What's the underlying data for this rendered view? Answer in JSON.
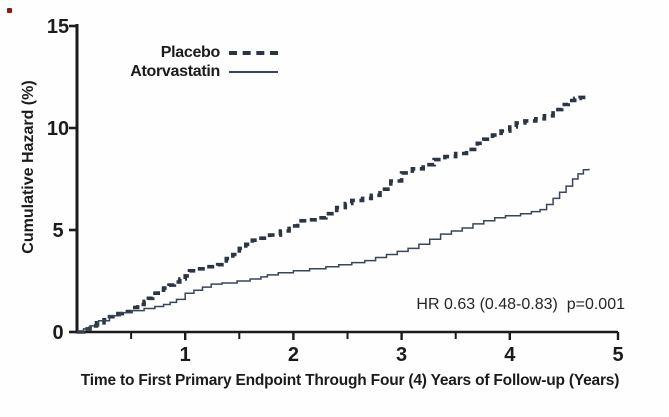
{
  "chart_data": {
    "type": "line",
    "subtype": "step-cumulative-hazard",
    "title": "",
    "xlabel": "Time to First Primary Endpoint Through Four (4) Years of Follow-up (Years)",
    "ylabel": "Cumulative Hazard (%)",
    "annotation": "HR 0.63 (0.48-0.83)  p=0.001",
    "xlim": [
      0,
      5
    ],
    "ylim": [
      0,
      15
    ],
    "x_major_ticks": [
      1,
      2,
      3,
      4,
      5
    ],
    "x_minor_ticks": [
      0.5,
      1.5,
      2.5,
      3.5
    ],
    "y_ticks": [
      0,
      5,
      10,
      15
    ],
    "grid": false,
    "legend_position": "top-center-inside",
    "series": [
      {
        "name": "Placebo",
        "style": "dashed",
        "color": "#2c3544",
        "line_width": 3.6,
        "points": [
          [
            0,
            0
          ],
          [
            0.06,
            0.15
          ],
          [
            0.12,
            0.3
          ],
          [
            0.18,
            0.45
          ],
          [
            0.25,
            0.6
          ],
          [
            0.3,
            0.75
          ],
          [
            0.36,
            0.9
          ],
          [
            0.42,
            1.0
          ],
          [
            0.5,
            1.2
          ],
          [
            0.56,
            1.35
          ],
          [
            0.62,
            1.5
          ],
          [
            0.66,
            1.65
          ],
          [
            0.7,
            1.9
          ],
          [
            0.75,
            2.05
          ],
          [
            0.8,
            2.15
          ],
          [
            0.85,
            2.3
          ],
          [
            0.9,
            2.45
          ],
          [
            0.95,
            2.6
          ],
          [
            1.0,
            2.75
          ],
          [
            1.04,
            3.0
          ],
          [
            1.1,
            3.1
          ],
          [
            1.2,
            3.2
          ],
          [
            1.3,
            3.3
          ],
          [
            1.38,
            3.6
          ],
          [
            1.44,
            3.8
          ],
          [
            1.5,
            4.1
          ],
          [
            1.56,
            4.3
          ],
          [
            1.62,
            4.5
          ],
          [
            1.68,
            4.6
          ],
          [
            1.78,
            4.75
          ],
          [
            1.88,
            4.95
          ],
          [
            1.96,
            5.2
          ],
          [
            2.04,
            5.45
          ],
          [
            2.12,
            5.5
          ],
          [
            2.2,
            5.6
          ],
          [
            2.3,
            5.8
          ],
          [
            2.4,
            6.1
          ],
          [
            2.48,
            6.3
          ],
          [
            2.54,
            6.45
          ],
          [
            2.64,
            6.55
          ],
          [
            2.72,
            6.7
          ],
          [
            2.8,
            7.0
          ],
          [
            2.9,
            7.4
          ],
          [
            3.0,
            7.8
          ],
          [
            3.1,
            8.0
          ],
          [
            3.2,
            8.2
          ],
          [
            3.3,
            8.45
          ],
          [
            3.4,
            8.6
          ],
          [
            3.5,
            8.75
          ],
          [
            3.6,
            8.95
          ],
          [
            3.7,
            9.25
          ],
          [
            3.76,
            9.45
          ],
          [
            3.84,
            9.65
          ],
          [
            3.92,
            9.85
          ],
          [
            4.0,
            10.05
          ],
          [
            4.06,
            10.25
          ],
          [
            4.14,
            10.35
          ],
          [
            4.24,
            10.45
          ],
          [
            4.32,
            10.6
          ],
          [
            4.4,
            10.9
          ],
          [
            4.48,
            11.15
          ],
          [
            4.54,
            11.35
          ],
          [
            4.6,
            11.45
          ],
          [
            4.65,
            11.5
          ],
          [
            4.72,
            11.5
          ]
        ]
      },
      {
        "name": "Atorvastatin",
        "style": "solid",
        "color": "#39455a",
        "line_width": 1.5,
        "points": [
          [
            0,
            0
          ],
          [
            0.06,
            0.15
          ],
          [
            0.12,
            0.3
          ],
          [
            0.2,
            0.55
          ],
          [
            0.3,
            0.8
          ],
          [
            0.4,
            0.95
          ],
          [
            0.5,
            1.05
          ],
          [
            0.62,
            1.15
          ],
          [
            0.72,
            1.25
          ],
          [
            0.8,
            1.35
          ],
          [
            0.86,
            1.45
          ],
          [
            0.92,
            1.6
          ],
          [
            1.0,
            1.9
          ],
          [
            1.08,
            2.05
          ],
          [
            1.16,
            2.2
          ],
          [
            1.24,
            2.35
          ],
          [
            1.34,
            2.4
          ],
          [
            1.48,
            2.5
          ],
          [
            1.6,
            2.6
          ],
          [
            1.7,
            2.7
          ],
          [
            1.76,
            2.8
          ],
          [
            1.86,
            2.9
          ],
          [
            2.0,
            3.0
          ],
          [
            2.15,
            3.1
          ],
          [
            2.3,
            3.2
          ],
          [
            2.42,
            3.3
          ],
          [
            2.54,
            3.4
          ],
          [
            2.66,
            3.5
          ],
          [
            2.76,
            3.65
          ],
          [
            2.86,
            3.8
          ],
          [
            2.96,
            3.95
          ],
          [
            3.06,
            4.1
          ],
          [
            3.16,
            4.3
          ],
          [
            3.26,
            4.55
          ],
          [
            3.36,
            4.8
          ],
          [
            3.46,
            4.95
          ],
          [
            3.56,
            5.1
          ],
          [
            3.66,
            5.3
          ],
          [
            3.76,
            5.45
          ],
          [
            3.86,
            5.6
          ],
          [
            3.96,
            5.7
          ],
          [
            4.1,
            5.8
          ],
          [
            4.2,
            5.9
          ],
          [
            4.28,
            6.0
          ],
          [
            4.34,
            6.25
          ],
          [
            4.4,
            6.55
          ],
          [
            4.46,
            6.85
          ],
          [
            4.52,
            7.15
          ],
          [
            4.58,
            7.5
          ],
          [
            4.63,
            7.75
          ],
          [
            4.68,
            7.95
          ],
          [
            4.73,
            8.0
          ]
        ]
      }
    ]
  },
  "colors": {
    "axis": "#1b1b1b",
    "text": "#1b1b1b",
    "annotation_text": "#252525",
    "background": "#fefefe",
    "placebo_line": "#2c3544",
    "atorvastatin_line": "#39455a",
    "artifact_red": "#8c1b10"
  }
}
